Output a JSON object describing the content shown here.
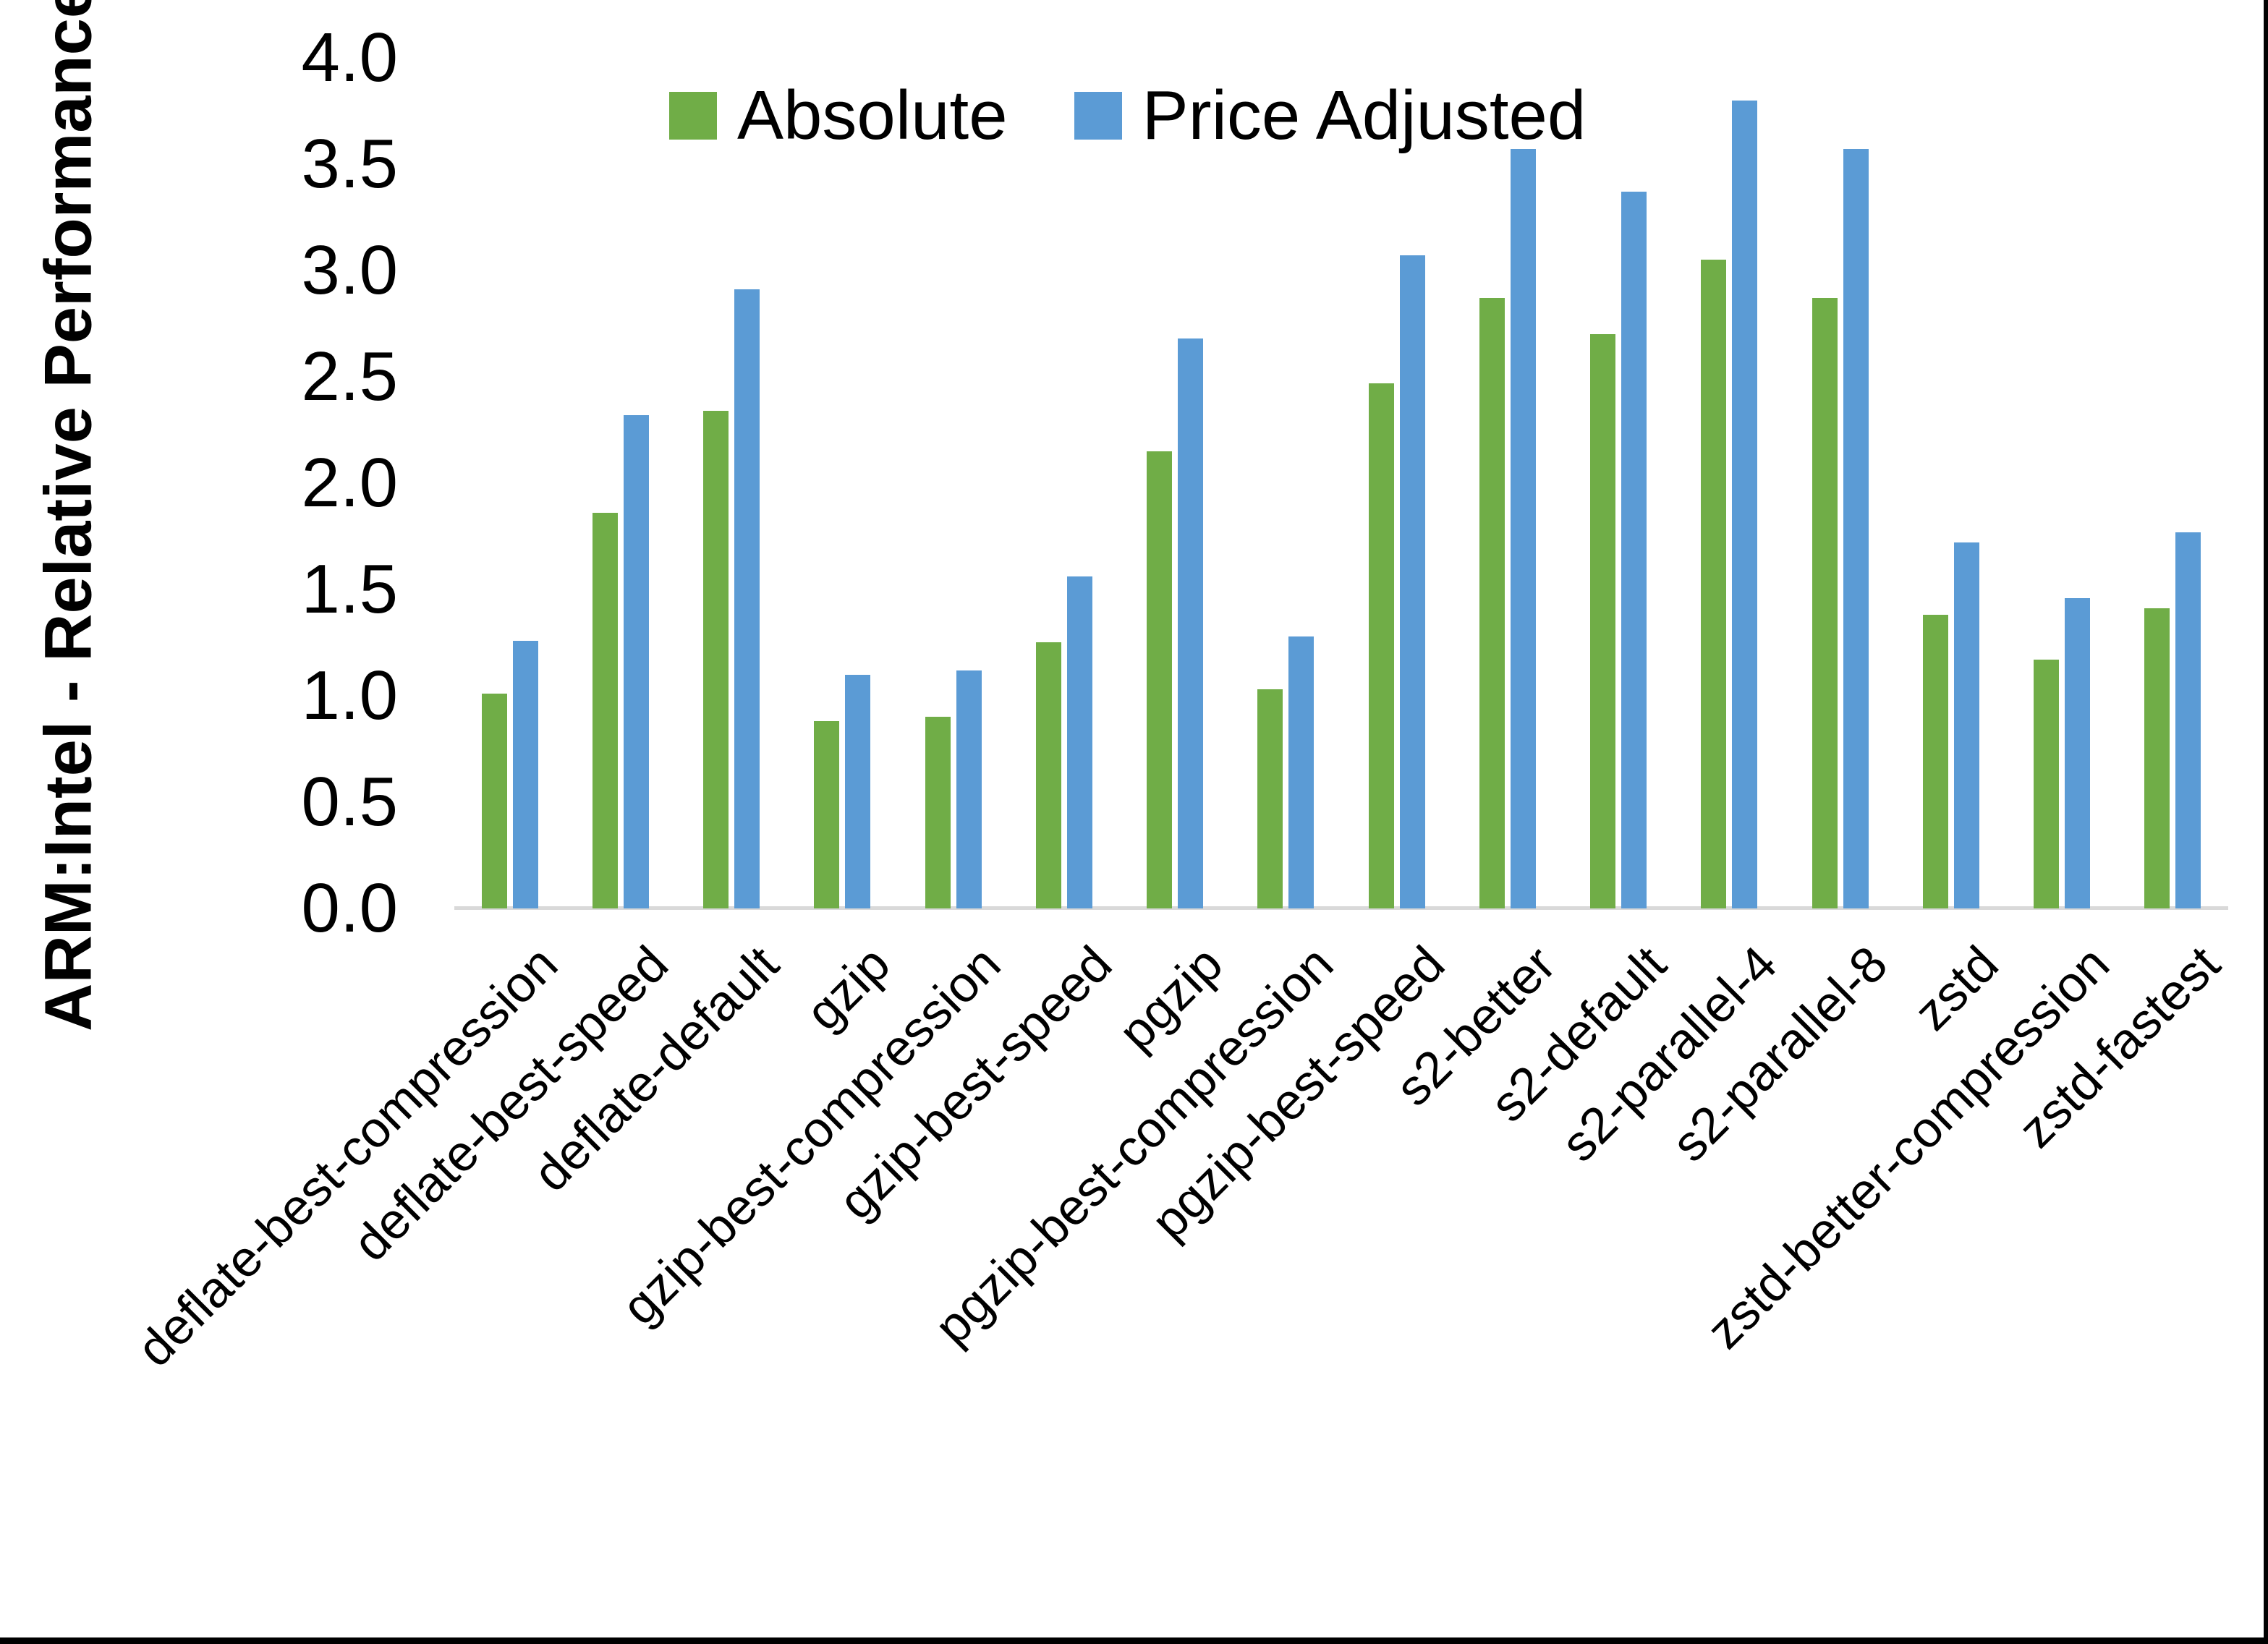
{
  "chart_data": {
    "type": "bar",
    "title": "",
    "xlabel": "",
    "ylabel": "ARM:Intel - Relative Performance",
    "ylim": [
      0.0,
      4.0
    ],
    "ytick_labels": [
      "0.0",
      "0.5",
      "1.0",
      "1.5",
      "2.0",
      "2.5",
      "3.0",
      "3.5",
      "4.0"
    ],
    "grid": false,
    "legend_position": "top-center",
    "categories": [
      "deflate-best-compression",
      "deflate-best-speed",
      "deflate-default",
      "gzip",
      "gzip-best-compression",
      "gzip-best-speed",
      "pgzip",
      "pgzip-best-compression",
      "pgzip-best-speed",
      "s2-better",
      "s2-default",
      "s2-parallel-4",
      "s2-parallel-8",
      "zstd",
      "zstd-better-compression",
      "zstd-fastest"
    ],
    "series": [
      {
        "name": "Absolute",
        "color": "#70AD47",
        "values": [
          1.01,
          1.86,
          2.34,
          0.88,
          0.9,
          1.25,
          2.15,
          1.03,
          2.47,
          2.87,
          2.7,
          3.05,
          2.87,
          1.38,
          1.17,
          1.41
        ]
      },
      {
        "name": "Price Adjusted",
        "color": "#5B9BD5",
        "values": [
          1.26,
          2.32,
          2.91,
          1.1,
          1.12,
          1.56,
          2.68,
          1.28,
          3.07,
          3.57,
          3.37,
          3.8,
          3.57,
          1.72,
          1.46,
          1.77
        ]
      }
    ],
    "colors": {
      "axis_line": "#D9D9D9",
      "text": "#000000",
      "background": "#FFFFFF",
      "frame_border": "#000000"
    }
  }
}
